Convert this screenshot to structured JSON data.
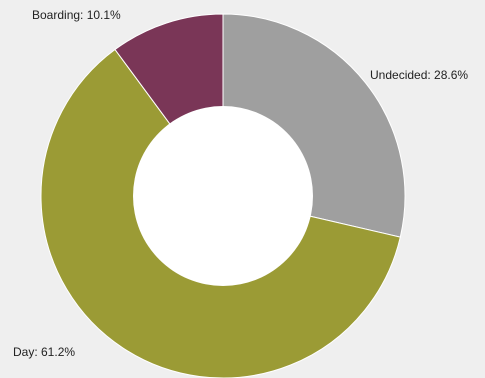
{
  "chart_data": {
    "type": "pie",
    "donut": true,
    "legend": "none",
    "slices": [
      {
        "name": "Undecided",
        "value": 28.6,
        "color": "#9f9f9f",
        "label": "Undecided: 28.6%"
      },
      {
        "name": "Day",
        "value": 61.2,
        "color": "#9b9b35",
        "label": "Day: 61.2%"
      },
      {
        "name": "Boarding",
        "value": 10.1,
        "color": "#7a3657",
        "label": "Boarding: 10.1%"
      }
    ]
  }
}
